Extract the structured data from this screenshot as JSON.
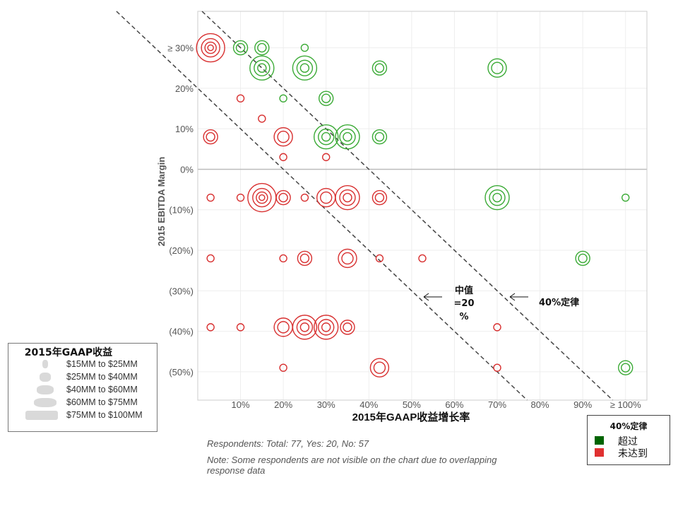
{
  "chart_data": {
    "type": "scatter",
    "xlabel": "2015年GAAP收益增长率",
    "ylabel": "2015 EBITDA Margin",
    "xlim": [
      0,
      105
    ],
    "ylim": [
      -57,
      39
    ],
    "x_ticks": [
      {
        "v": 10,
        "label": "10%"
      },
      {
        "v": 20,
        "label": "20%"
      },
      {
        "v": 30,
        "label": "30%"
      },
      {
        "v": 40,
        "label": "40%"
      },
      {
        "v": 50,
        "label": "50%"
      },
      {
        "v": 60,
        "label": "60%"
      },
      {
        "v": 70,
        "label": "70%"
      },
      {
        "v": 80,
        "label": "80%"
      },
      {
        "v": 90,
        "label": "90%"
      },
      {
        "v": 100,
        "label": "≥ 100%"
      }
    ],
    "y_ticks": [
      {
        "v": 30,
        "label": "≥ 30%"
      },
      {
        "v": 20,
        "label": "20%"
      },
      {
        "v": 10,
        "label": "10%"
      },
      {
        "v": 0,
        "label": "0%"
      },
      {
        "v": -10,
        "label": "(10%)"
      },
      {
        "v": -20,
        "label": "(20%)"
      },
      {
        "v": -30,
        "label": "(30%)"
      },
      {
        "v": -40,
        "label": "(40%)"
      },
      {
        "v": -50,
        "label": "(50%)"
      }
    ],
    "grid": true,
    "colors": {
      "exceed": "#3aaa35",
      "miss": "#d83030",
      "exceed_swatch": "#006400",
      "miss_swatch": "#e03030"
    },
    "size_classes": [
      "$15MM to $25MM",
      "$25MM to $40MM",
      "$40MM to $60MM",
      "$60MM to $75MM",
      "$75MM to $100MM"
    ],
    "points": [
      {
        "x": 3,
        "y": 30,
        "size": 5,
        "status": "miss"
      },
      {
        "x": 10,
        "y": 30,
        "size": 2,
        "status": "exceed"
      },
      {
        "x": 15,
        "y": 30,
        "size": 2,
        "status": "exceed"
      },
      {
        "x": 25,
        "y": 30,
        "size": 1,
        "status": "exceed"
      },
      {
        "x": 15,
        "y": 25,
        "size": 4,
        "status": "exceed"
      },
      {
        "x": 25,
        "y": 25,
        "size": 4,
        "status": "exceed"
      },
      {
        "x": 42.5,
        "y": 25,
        "size": 2,
        "status": "exceed"
      },
      {
        "x": 70,
        "y": 25,
        "size": 3,
        "status": "exceed"
      },
      {
        "x": 10,
        "y": 17.5,
        "size": 1,
        "status": "miss"
      },
      {
        "x": 20,
        "y": 17.5,
        "size": 1,
        "status": "exceed"
      },
      {
        "x": 30,
        "y": 17.5,
        "size": 2,
        "status": "exceed"
      },
      {
        "x": 15,
        "y": 12.5,
        "size": 1,
        "status": "miss"
      },
      {
        "x": 3,
        "y": 8,
        "size": 2,
        "status": "miss"
      },
      {
        "x": 20,
        "y": 8,
        "size": 3,
        "status": "miss"
      },
      {
        "x": 30,
        "y": 8,
        "size": 4,
        "status": "exceed"
      },
      {
        "x": 35,
        "y": 8,
        "size": 4,
        "status": "exceed"
      },
      {
        "x": 42.5,
        "y": 8,
        "size": 2,
        "status": "exceed"
      },
      {
        "x": 20,
        "y": 3,
        "size": 1,
        "status": "miss"
      },
      {
        "x": 30,
        "y": 3,
        "size": 1,
        "status": "miss"
      },
      {
        "x": 3,
        "y": -7,
        "size": 1,
        "status": "miss"
      },
      {
        "x": 10,
        "y": -7,
        "size": 1,
        "status": "miss"
      },
      {
        "x": 15,
        "y": -7,
        "size": 5,
        "status": "miss"
      },
      {
        "x": 20,
        "y": -7,
        "size": 2,
        "status": "miss"
      },
      {
        "x": 25,
        "y": -7,
        "size": 1,
        "status": "miss"
      },
      {
        "x": 30,
        "y": -7,
        "size": 3,
        "status": "miss"
      },
      {
        "x": 35,
        "y": -7,
        "size": 4,
        "status": "miss"
      },
      {
        "x": 42.5,
        "y": -7,
        "size": 2,
        "status": "miss"
      },
      {
        "x": 70,
        "y": -7,
        "size": 4,
        "status": "exceed"
      },
      {
        "x": 100,
        "y": -7,
        "size": 1,
        "status": "exceed"
      },
      {
        "x": 3,
        "y": -22,
        "size": 1,
        "status": "miss"
      },
      {
        "x": 20,
        "y": -22,
        "size": 1,
        "status": "miss"
      },
      {
        "x": 25,
        "y": -22,
        "size": 2,
        "status": "miss"
      },
      {
        "x": 35,
        "y": -22,
        "size": 3,
        "status": "miss"
      },
      {
        "x": 42.5,
        "y": -22,
        "size": 1,
        "status": "miss"
      },
      {
        "x": 52.5,
        "y": -22,
        "size": 1,
        "status": "miss"
      },
      {
        "x": 90,
        "y": -22,
        "size": 2,
        "status": "exceed"
      },
      {
        "x": 3,
        "y": -39,
        "size": 1,
        "status": "miss"
      },
      {
        "x": 10,
        "y": -39,
        "size": 1,
        "status": "miss"
      },
      {
        "x": 20,
        "y": -39,
        "size": 3,
        "status": "miss"
      },
      {
        "x": 25,
        "y": -39,
        "size": 4,
        "status": "miss"
      },
      {
        "x": 30,
        "y": -39,
        "size": 4,
        "status": "miss"
      },
      {
        "x": 35,
        "y": -39,
        "size": 2,
        "status": "miss"
      },
      {
        "x": 70,
        "y": -39,
        "size": 1,
        "status": "miss"
      },
      {
        "x": 20,
        "y": -49,
        "size": 1,
        "status": "miss"
      },
      {
        "x": 42.5,
        "y": -49,
        "size": 3,
        "status": "miss"
      },
      {
        "x": 70,
        "y": -49,
        "size": 1,
        "status": "miss"
      },
      {
        "x": 100,
        "y": -49,
        "size": 2,
        "status": "exceed"
      }
    ],
    "reference_lines": [
      {
        "name": "40%定律",
        "sum": 40
      },
      {
        "name": "中值=20%",
        "sum": 20
      }
    ],
    "annotations": {
      "median_line1": "中值",
      "median_line2": "=20",
      "median_line3": "%",
      "rule_label": "40%定律"
    },
    "legend_size_title": "2015年GAAP收益",
    "legend_status": {
      "title": "40%定律",
      "exceed": "超过",
      "miss": "未达到"
    }
  },
  "notes": {
    "respondents": "Respondents: Total: 77, Yes: 20, No: 57",
    "note_line1": "Note: Some respondents are not visible on the chart due to overlapping",
    "note_line2": "response data"
  }
}
